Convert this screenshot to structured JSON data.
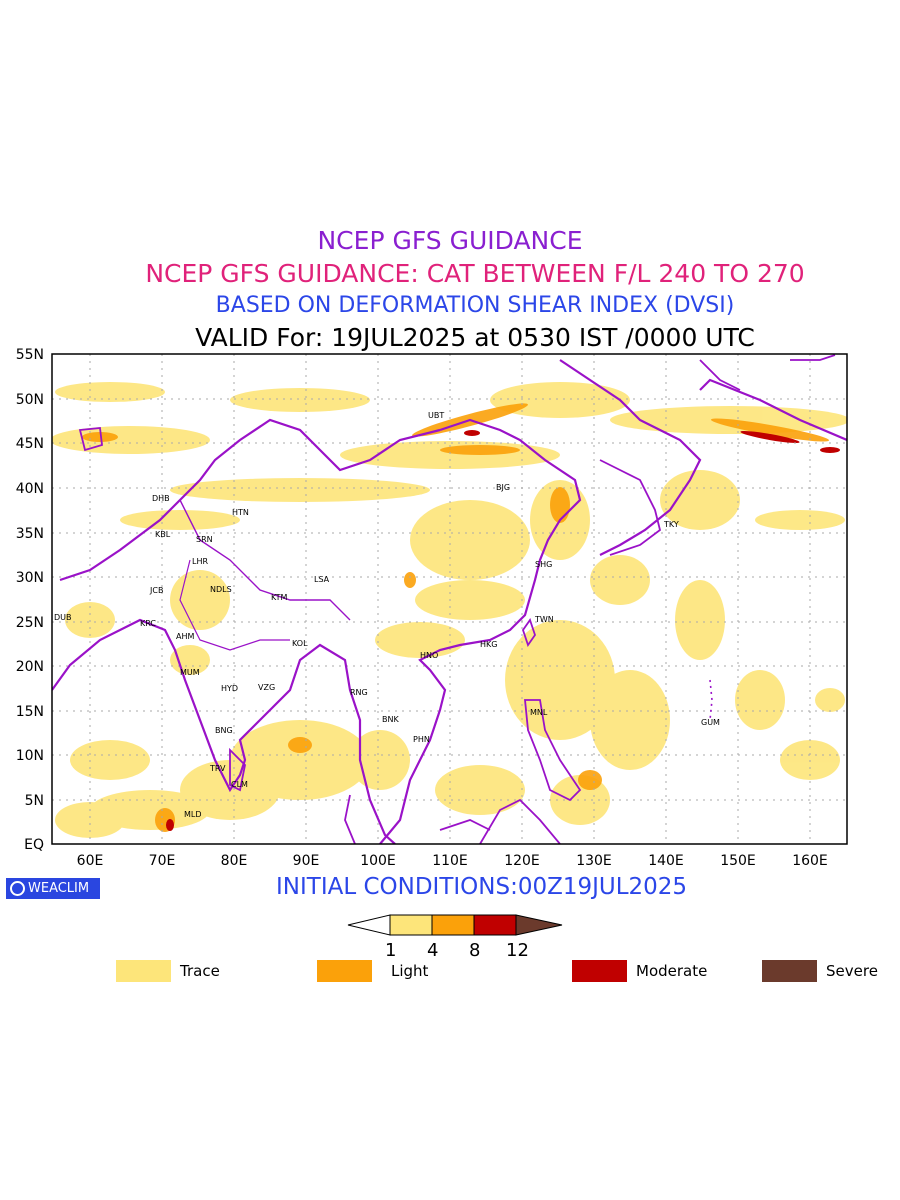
{
  "titles": {
    "line1": "NCEP GFS GUIDANCE",
    "line2": "NCEP GFS GUIDANCE: CAT BETWEEN F/L 240 TO 270",
    "line3": "BASED ON DEFORMATION SHEAR INDEX (DVSI)",
    "line4": "VALID For: 19JUL2025 at 0530 IST /0000 UTC"
  },
  "axes": {
    "lat_labels": [
      "55N",
      "50N",
      "45N",
      "40N",
      "35N",
      "30N",
      "25N",
      "20N",
      "15N",
      "10N",
      "5N",
      "EQ"
    ],
    "lon_labels": [
      "60E",
      "70E",
      "80E",
      "90E",
      "100E",
      "110E",
      "120E",
      "130E",
      "140E",
      "150E",
      "160E"
    ]
  },
  "cities": [
    {
      "code": "UBT"
    },
    {
      "code": "BJG"
    },
    {
      "code": "TKY"
    },
    {
      "code": "SHG"
    },
    {
      "code": "TWN"
    },
    {
      "code": "HKG"
    },
    {
      "code": "HNO"
    },
    {
      "code": "MNL"
    },
    {
      "code": "GUM"
    },
    {
      "code": "BNK"
    },
    {
      "code": "PHN"
    },
    {
      "code": "RNG"
    },
    {
      "code": "LSA"
    },
    {
      "code": "KTM"
    },
    {
      "code": "KOL"
    },
    {
      "code": "DHB"
    },
    {
      "code": "KBL"
    },
    {
      "code": "SRN"
    },
    {
      "code": "LHR"
    },
    {
      "code": "HTN"
    },
    {
      "code": "JCB"
    },
    {
      "code": "NDLS"
    },
    {
      "code": "DUB"
    },
    {
      "code": "KRC"
    },
    {
      "code": "AHM"
    },
    {
      "code": "MUM"
    },
    {
      "code": "HYD"
    },
    {
      "code": "VZG"
    },
    {
      "code": "BNG"
    },
    {
      "code": "TRV"
    },
    {
      "code": "CLM"
    },
    {
      "code": "MLD"
    }
  ],
  "logo": "WEACLIM",
  "initial_conditions": "INITIAL CONDITIONS:00Z19JUL2025",
  "colorbar": {
    "ticks": [
      "1",
      "4",
      "8",
      "12"
    ],
    "colors": [
      "#ffffff",
      "#fde57a",
      "#fba10a",
      "#c00000",
      "#6b3a2c"
    ]
  },
  "legend": [
    {
      "label": "Trace",
      "color": "#fde57a"
    },
    {
      "label": "Light",
      "color": "#fba10a"
    },
    {
      "label": "Moderate",
      "color": "#c00000"
    },
    {
      "label": "Severe",
      "color": "#6b3a2c"
    }
  ],
  "colors": {
    "border": "#9a12c8",
    "trace": "#fde57a",
    "light": "#fba10a",
    "moderate": "#c00000"
  }
}
